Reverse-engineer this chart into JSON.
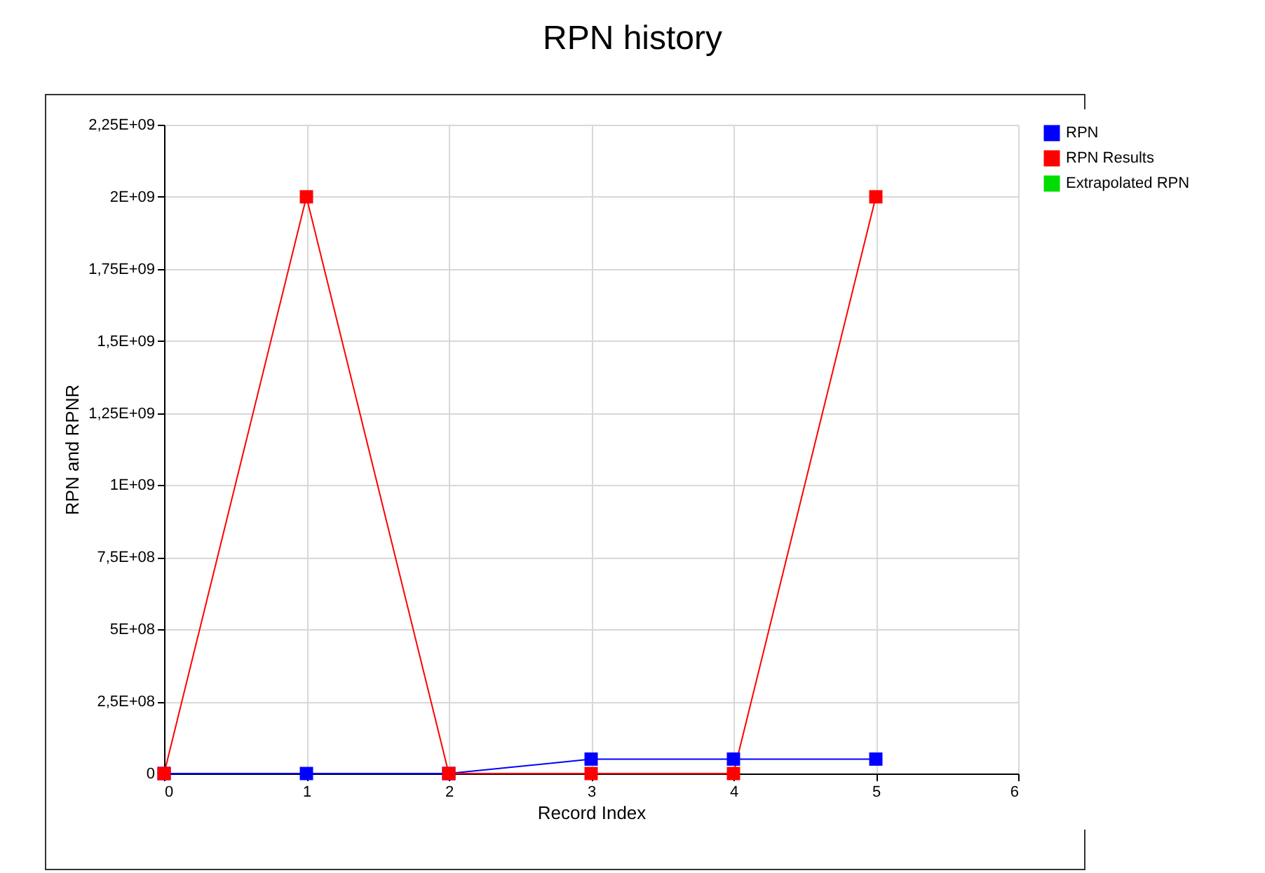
{
  "chart_data": {
    "type": "line",
    "title": "RPN history",
    "xlabel": "Record Index",
    "ylabel": "RPN and RPNR",
    "x": [
      0,
      1,
      2,
      3,
      4,
      5
    ],
    "series": [
      {
        "name": "RPN",
        "color": "#0000ff",
        "values": [
          0,
          0,
          0,
          50000000,
          50000000,
          50000000
        ]
      },
      {
        "name": "RPN Results",
        "color": "#ff0000",
        "values": [
          0,
          2000000000,
          0,
          0,
          0,
          2000000000
        ]
      },
      {
        "name": "Extrapolated RPN",
        "color": "#00dd00",
        "values": [
          null,
          null,
          null,
          null,
          null,
          null
        ]
      }
    ],
    "xlim": [
      0,
      6
    ],
    "xticks": [
      0,
      1,
      2,
      3,
      4,
      5,
      6
    ],
    "ylim": [
      0,
      2250000000
    ],
    "yticks": [
      {
        "value": 0,
        "label": "0"
      },
      {
        "value": 250000000,
        "label": "2,5E+08"
      },
      {
        "value": 500000000,
        "label": "5E+08"
      },
      {
        "value": 750000000,
        "label": "7,5E+08"
      },
      {
        "value": 1000000000,
        "label": "1E+09"
      },
      {
        "value": 1250000000,
        "label": "1,25E+09"
      },
      {
        "value": 1500000000,
        "label": "1,5E+09"
      },
      {
        "value": 1750000000,
        "label": "1,75E+09"
      },
      {
        "value": 2000000000,
        "label": "2E+09"
      },
      {
        "value": 2250000000,
        "label": "2,25E+09"
      }
    ],
    "grid": true,
    "legend": "top right",
    "marker": "square",
    "line_style": "solid"
  }
}
